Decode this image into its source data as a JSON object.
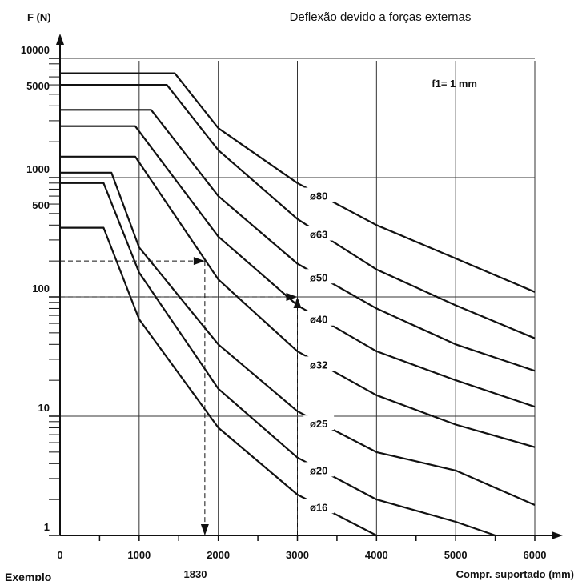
{
  "chart_data": {
    "type": "line",
    "title": "Deflexão devido a forças externas",
    "ylabel": "F (N)",
    "xlabel": "Compr. suportado (mm)",
    "annotation": "f1= 1 mm",
    "x_marker_label": "1830",
    "bottom_left_text": "Exemplo",
    "xlim": [
      0,
      6000
    ],
    "ylim": [
      1,
      10000
    ],
    "yscale": "log",
    "x_ticks": [
      "0",
      "1000",
      "2000",
      "3000",
      "4000",
      "5000",
      "6000"
    ],
    "y_tick_labels": [
      "10000",
      "5000",
      "1000",
      "500",
      "100",
      "10",
      "1"
    ],
    "grid": true,
    "line_color": "#111111",
    "series": [
      {
        "name": "ø80",
        "points": [
          [
            0,
            7500
          ],
          [
            1450,
            7500
          ],
          [
            2000,
            2600
          ],
          [
            3000,
            900
          ],
          [
            4000,
            400
          ],
          [
            5000,
            210
          ],
          [
            6000,
            110
          ]
        ]
      },
      {
        "name": "ø63",
        "points": [
          [
            0,
            6000
          ],
          [
            1350,
            6000
          ],
          [
            2000,
            1700
          ],
          [
            3000,
            450
          ],
          [
            4000,
            170
          ],
          [
            5000,
            85
          ],
          [
            6000,
            45
          ]
        ]
      },
      {
        "name": "ø50",
        "points": [
          [
            0,
            3700
          ],
          [
            1150,
            3700
          ],
          [
            2000,
            700
          ],
          [
            3000,
            190
          ],
          [
            4000,
            80
          ],
          [
            5000,
            40
          ],
          [
            6000,
            24
          ]
        ]
      },
      {
        "name": "ø40",
        "points": [
          [
            0,
            2700
          ],
          [
            950,
            2700
          ],
          [
            2000,
            320
          ],
          [
            3000,
            85
          ],
          [
            4000,
            35
          ],
          [
            5000,
            20
          ],
          [
            6000,
            12
          ]
        ]
      },
      {
        "name": "ø32",
        "points": [
          [
            0,
            1500
          ],
          [
            950,
            1500
          ],
          [
            2000,
            140
          ],
          [
            3000,
            35
          ],
          [
            4000,
            15
          ],
          [
            5000,
            8.5
          ],
          [
            6000,
            5.5
          ]
        ]
      },
      {
        "name": "ø25",
        "points": [
          [
            0,
            1100
          ],
          [
            650,
            1100
          ],
          [
            1000,
            260
          ],
          [
            2000,
            40
          ],
          [
            3000,
            11
          ],
          [
            4000,
            5
          ],
          [
            5000,
            3.5
          ],
          [
            6000,
            1.8
          ]
        ]
      },
      {
        "name": "ø20",
        "points": [
          [
            0,
            900
          ],
          [
            550,
            900
          ],
          [
            1000,
            160
          ],
          [
            2000,
            17
          ],
          [
            3000,
            4.5
          ],
          [
            4000,
            2
          ],
          [
            5000,
            1.3
          ],
          [
            5500,
            1
          ]
        ]
      },
      {
        "name": "ø16",
        "points": [
          [
            0,
            380
          ],
          [
            550,
            380
          ],
          [
            1000,
            65
          ],
          [
            2000,
            8
          ],
          [
            3000,
            2.2
          ],
          [
            4000,
            1
          ]
        ]
      }
    ],
    "reference_lines": [
      {
        "from": [
          0,
          200
        ],
        "to": [
          1830,
          200
        ]
      },
      {
        "from": [
          1830,
          200
        ],
        "to": [
          1830,
          1
        ]
      },
      {
        "from": [
          0,
          100
        ],
        "to": [
          3000,
          100
        ]
      },
      {
        "from": [
          3000,
          1
        ],
        "to": [
          3000,
          100
        ]
      }
    ]
  }
}
